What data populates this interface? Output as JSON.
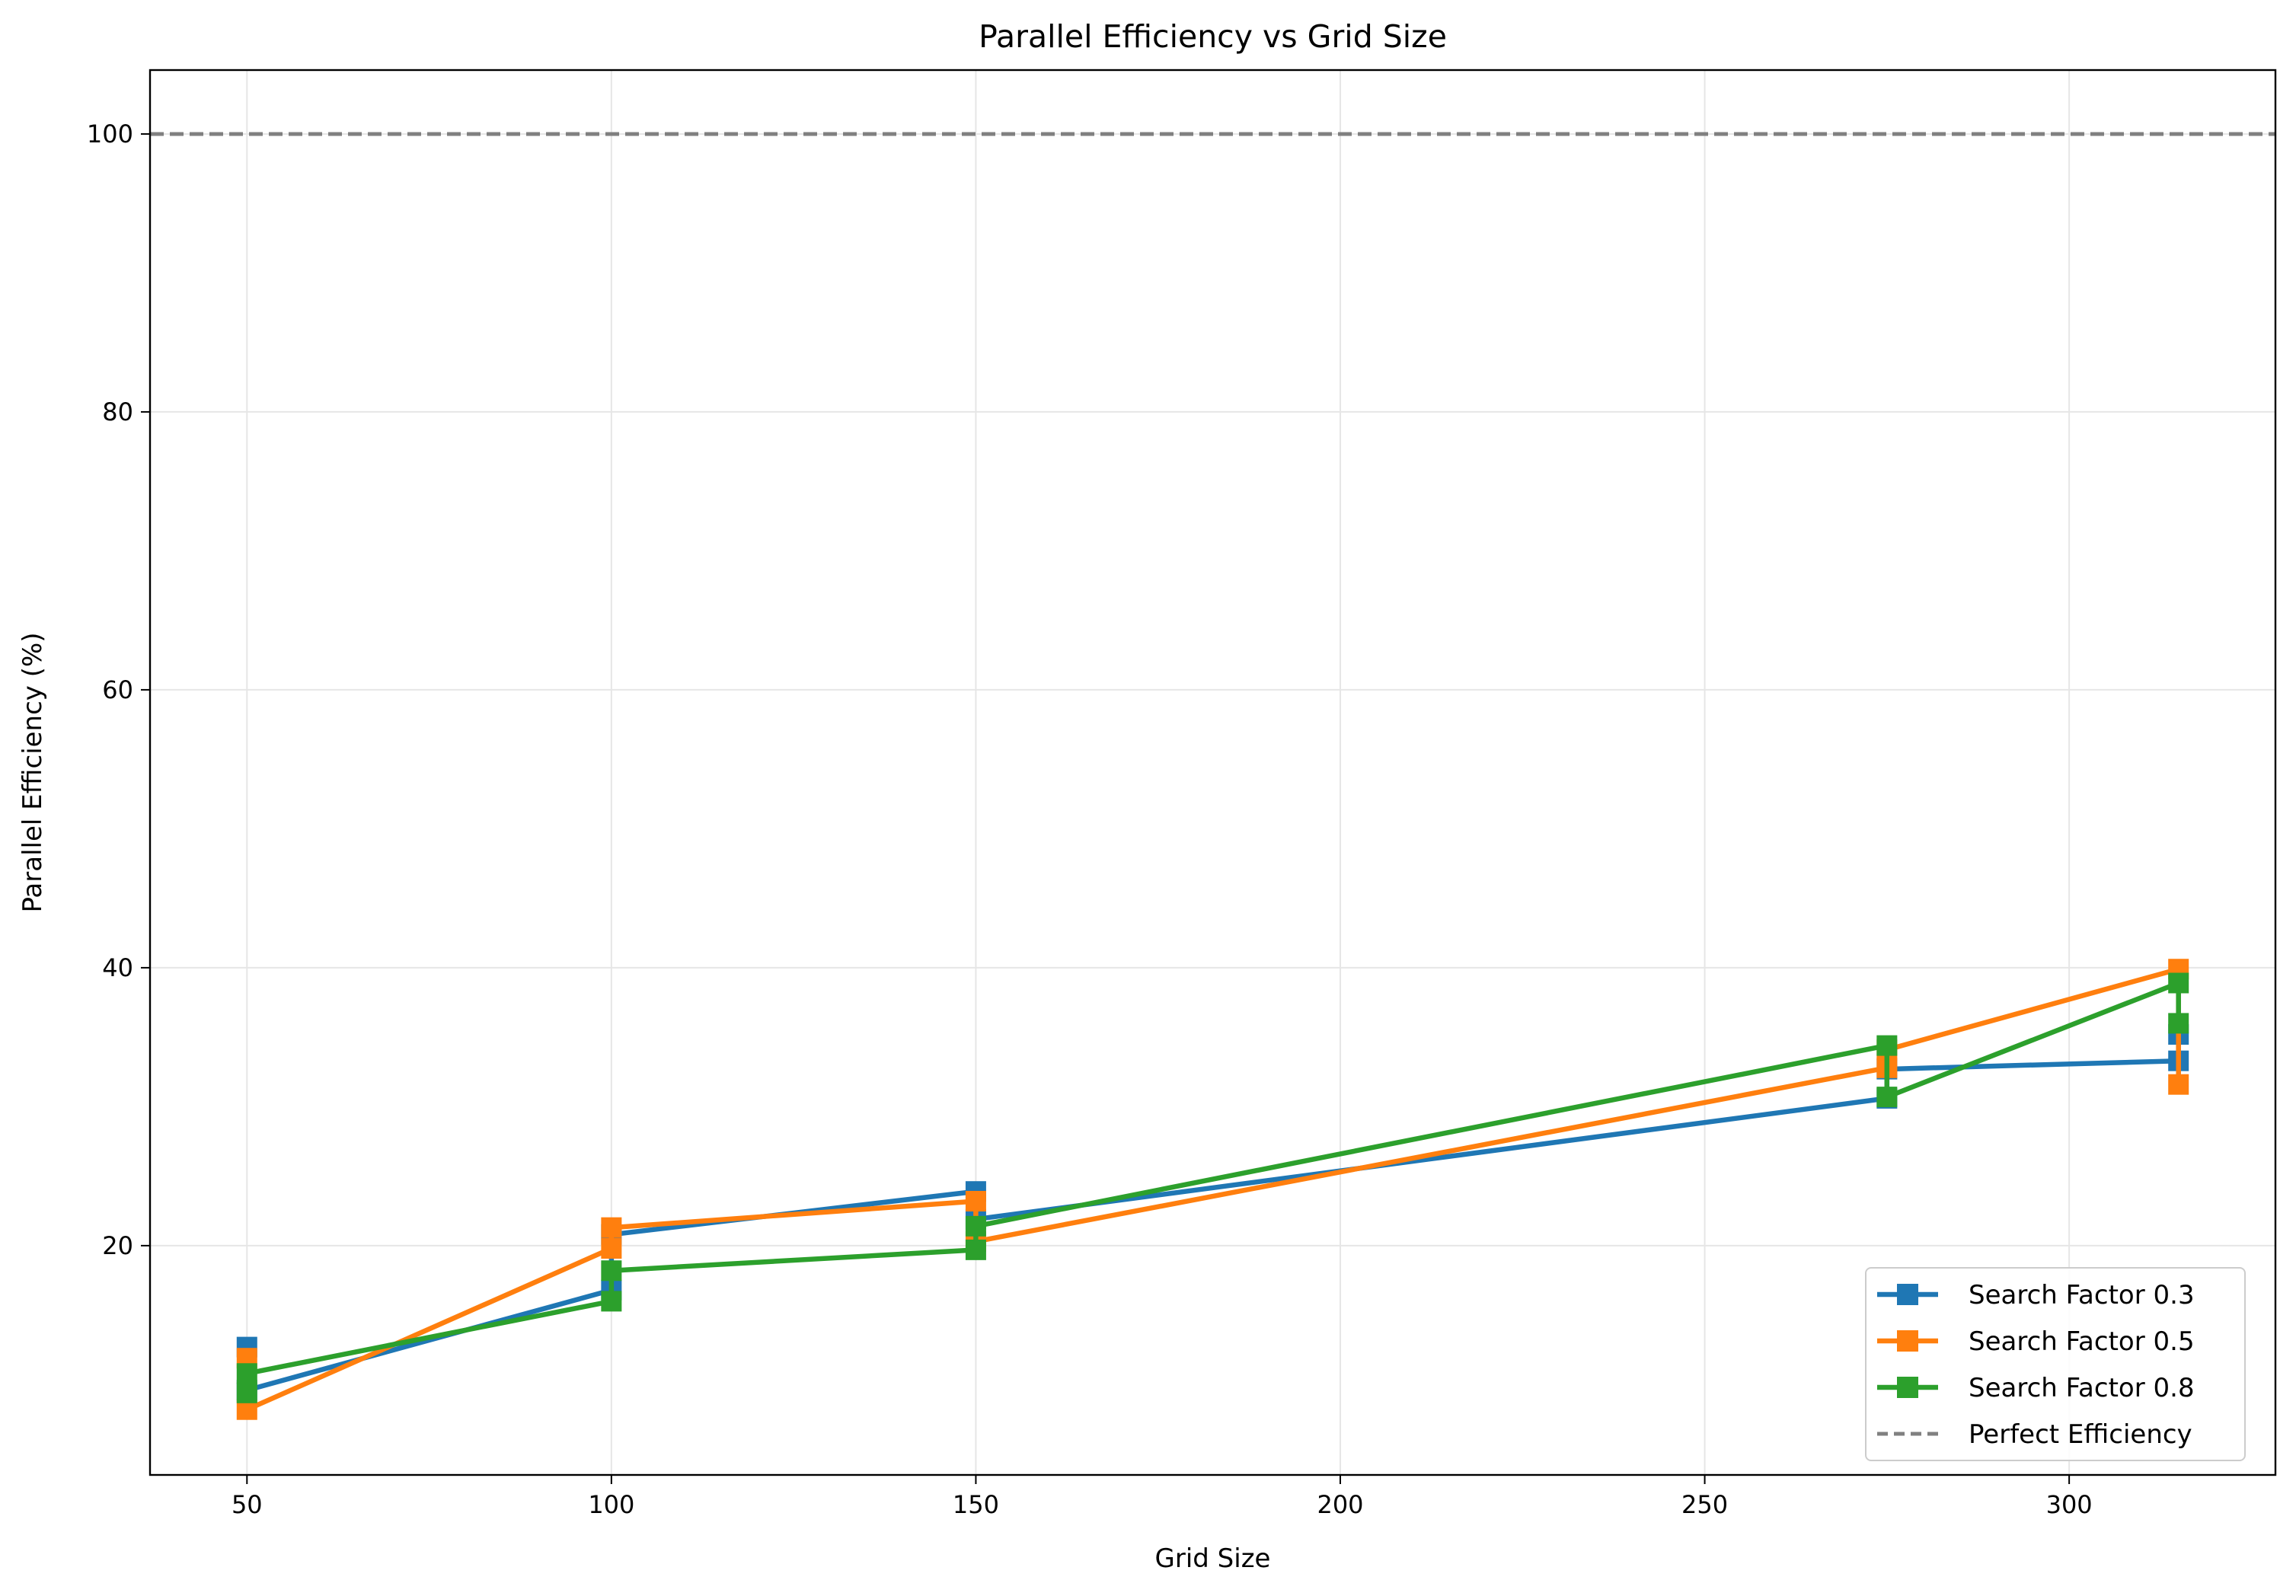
{
  "chart_data": {
    "type": "line",
    "title": "Parallel Efficiency vs Grid Size",
    "xlabel": "Grid Size",
    "ylabel": "Parallel Efficiency (%)",
    "xlim": [
      36.7,
      328.3
    ],
    "ylim": [
      3.5,
      104.6
    ],
    "xticks": [
      50,
      100,
      150,
      200,
      250,
      300
    ],
    "yticks": [
      20,
      40,
      60,
      80,
      100
    ],
    "grid": true,
    "legend_position": "lower right",
    "reference_line": {
      "name": "Perfect Efficiency",
      "y": 100,
      "color": "#808080",
      "style": "dashed"
    },
    "series": [
      {
        "name": "Search Factor 0.3",
        "color": "#1f77b4",
        "x": [
          50,
          50,
          100,
          100,
          150,
          150,
          275,
          275,
          315,
          315
        ],
        "y": [
          12.7,
          9.6,
          16.8,
          20.8,
          23.9,
          21.9,
          30.6,
          32.7,
          33.3,
          35.2
        ]
      },
      {
        "name": "Search Factor 0.5",
        "color": "#ff7f0e",
        "x": [
          50,
          50,
          100,
          100,
          150,
          150,
          275,
          275,
          315,
          315
        ],
        "y": [
          11.9,
          8.2,
          19.8,
          21.3,
          23.2,
          20.3,
          32.8,
          34.1,
          39.9,
          31.6
        ]
      },
      {
        "name": "Search Factor 0.8",
        "color": "#2ca02c",
        "x": [
          50,
          50,
          100,
          100,
          150,
          150,
          275,
          275,
          315,
          315
        ],
        "y": [
          9.4,
          10.8,
          16.0,
          18.2,
          19.7,
          21.4,
          34.4,
          30.7,
          38.9,
          36.0
        ]
      }
    ]
  }
}
